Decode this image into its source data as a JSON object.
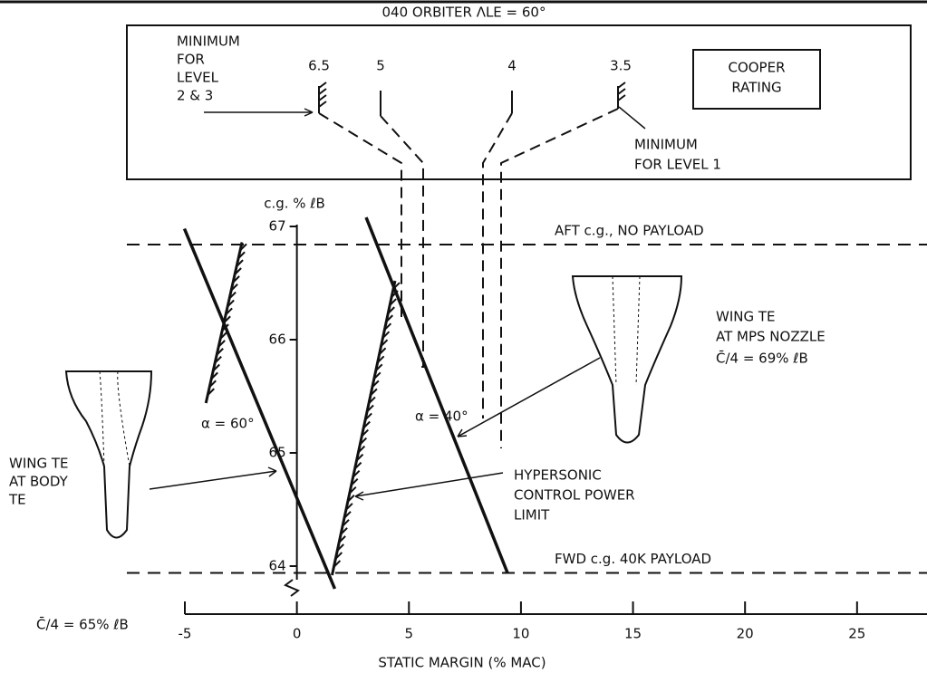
{
  "chart_data": {
    "type": "line",
    "title": "040 ORBITER ΛLE = 60°",
    "cooper_box": {
      "minimum_level_2_3": [
        "MINIMUM",
        "FOR",
        "LEVEL",
        "2 & 3"
      ],
      "ratings": [
        6.5,
        5,
        4,
        3.5
      ],
      "rating_label": [
        "COOPER",
        "RATING"
      ],
      "minimum_level_1": [
        "MINIMUM",
        "FOR LEVEL 1"
      ]
    },
    "x_label": "STATIC MARGIN (% MAC)",
    "y_label": "c.g. % ℓB",
    "x_axis_note": "C̄/4 = 65% ℓB",
    "xlim": [
      -5,
      28
    ],
    "ylim": [
      63.8,
      67
    ],
    "xticks": [
      -5,
      0,
      5,
      10,
      15,
      20,
      25
    ],
    "yticks": [
      64,
      65,
      66,
      67
    ],
    "lines": [
      {
        "name": "α = 60°",
        "x": [
          -5.02,
          1.69
        ],
        "y": [
          66.98,
          63.8
        ]
      },
      {
        "name": "α = 40°",
        "x": [
          3.09,
          9.4
        ],
        "y": [
          67.08,
          63.94
        ]
      }
    ],
    "limits": [
      {
        "x": [
          -4.06,
          -2.45
        ],
        "y": [
          65.44,
          66.86
        ]
      },
      {
        "x": [
          1.57,
          4.38
        ],
        "y": [
          63.92,
          66.52
        ]
      }
    ],
    "limit_label": [
      "HYPERSONIC",
      "CONTROL POWER",
      "LIMIT"
    ],
    "reference_lines": [
      {
        "label": "AFT c.g., NO PAYLOAD",
        "y": 66.84
      },
      {
        "label": "FWD c.g. 40K PAYLOAD",
        "y": 63.94
      }
    ],
    "wing_mps": [
      "WING TE",
      "AT MPS NOZZLE",
      "C̄/4 = 69% ℓB"
    ],
    "wing_body": [
      "WING TE",
      "AT BODY",
      "TE"
    ]
  }
}
